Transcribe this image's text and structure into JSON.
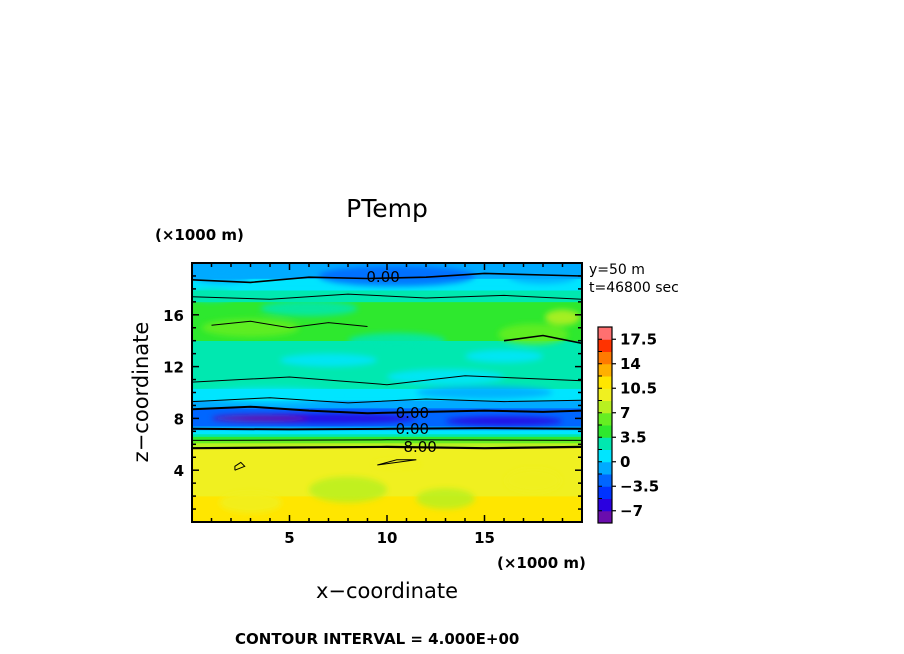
{
  "chart_data": {
    "type": "heatmap",
    "title": "PTemp",
    "xlabel": "x−coordinate",
    "ylabel": "z−coordinate",
    "x_unit": "(×1000 m)",
    "y_unit": "(×1000 m)",
    "xlim": [
      0,
      20
    ],
    "ylim": [
      0,
      20
    ],
    "x_ticks": [
      5,
      10,
      15
    ],
    "x_tick_labels": [
      "5",
      "10",
      "15"
    ],
    "y_ticks": [
      4,
      8,
      12,
      16
    ],
    "y_tick_labels": [
      "4",
      "8",
      "12",
      "16"
    ],
    "info": [
      "y=50  m",
      "t=46800 sec"
    ],
    "contour_interval_text": "CONTOUR INTERVAL =  4.000E+00",
    "colorbar": {
      "levels": [
        -8.75,
        -7,
        -5.25,
        -3.5,
        -1.75,
        0,
        1.75,
        3.5,
        5.25,
        7,
        8.75,
        10.5,
        12.25,
        14,
        15.75,
        17.5,
        19.25
      ],
      "colors": [
        "#6a0dad",
        "#2a00e0",
        "#0033ff",
        "#0066ff",
        "#00aaff",
        "#00e5ff",
        "#00e8b0",
        "#2ee82e",
        "#66ee22",
        "#b8f020",
        "#f0f020",
        "#ffe600",
        "#ffb000",
        "#ff7a00",
        "#ff3300",
        "#ff7070"
      ],
      "tick_values": [
        -7,
        -3.5,
        0,
        3.5,
        7,
        10.5,
        14,
        17.5
      ],
      "tick_labels": [
        "−7",
        "−3.5",
        "0",
        "3.5",
        "7",
        "10.5",
        "14",
        "17.5"
      ]
    },
    "approx_vertical_profile": {
      "z": [
        0,
        2,
        4,
        5.5,
        6,
        6.5,
        7,
        7.5,
        8,
        8.5,
        9,
        10,
        11,
        12,
        14,
        16,
        17,
        18,
        19,
        20
      ],
      "value": [
        10.5,
        10.5,
        10.4,
        10.2,
        8.0,
        4.0,
        0.5,
        -2.5,
        -3.0,
        -2.5,
        -1.0,
        1.5,
        2.5,
        3.0,
        3.5,
        4.0,
        3.5,
        1.5,
        -0.5,
        -1.0
      ]
    },
    "contour_labels": [
      {
        "text": "0.00",
        "x": 9.8,
        "z": 18.9
      },
      {
        "text": "0.00",
        "x": 11.3,
        "z": 8.4
      },
      {
        "text": "0.00",
        "x": 11.3,
        "z": 7.2
      },
      {
        "text": "8.00",
        "x": 11.7,
        "z": 5.8
      }
    ]
  }
}
